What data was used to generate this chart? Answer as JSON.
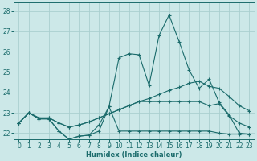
{
  "xlabel": "Humidex (Indice chaleur)",
  "xlim": [
    -0.5,
    23.5
  ],
  "ylim": [
    21.7,
    28.4
  ],
  "yticks": [
    22,
    23,
    24,
    25,
    26,
    27,
    28
  ],
  "xticks": [
    0,
    1,
    2,
    3,
    4,
    5,
    6,
    7,
    8,
    9,
    10,
    11,
    12,
    13,
    14,
    15,
    16,
    17,
    18,
    19,
    20,
    21,
    22,
    23
  ],
  "bg_color": "#cce8e8",
  "grid_color": "#aacfcf",
  "line_color": "#1a6b6b",
  "lines": [
    {
      "x": [
        0,
        1,
        2,
        3,
        4,
        5,
        6,
        7,
        8,
        9,
        10,
        11,
        12,
        13,
        14,
        15,
        16,
        17,
        18,
        19,
        20,
        21,
        22,
        23
      ],
      "y": [
        22.5,
        23.0,
        22.7,
        22.7,
        22.1,
        21.7,
        21.85,
        21.9,
        22.4,
        23.3,
        25.7,
        25.9,
        25.85,
        24.35,
        26.8,
        27.8,
        26.5,
        25.1,
        24.2,
        24.65,
        23.5,
        22.9,
        22.0,
        21.95
      ]
    },
    {
      "x": [
        0,
        1,
        2,
        3,
        4,
        5,
        6,
        7,
        8,
        9,
        10,
        11,
        12,
        13,
        14,
        15,
        16,
        17,
        18,
        19,
        20,
        21,
        22,
        23
      ],
      "y": [
        22.5,
        23.0,
        22.7,
        22.7,
        22.1,
        21.7,
        21.85,
        21.9,
        22.1,
        23.3,
        22.1,
        22.1,
        22.1,
        22.1,
        22.1,
        22.1,
        22.1,
        22.1,
        22.1,
        22.1,
        22.0,
        21.95,
        21.95,
        21.95
      ]
    },
    {
      "x": [
        0,
        1,
        2,
        3,
        4,
        5,
        6,
        7,
        8,
        9,
        10,
        11,
        12,
        13,
        14,
        15,
        16,
        17,
        18,
        19,
        20,
        21,
        22,
        23
      ],
      "y": [
        22.5,
        23.0,
        22.75,
        22.75,
        22.5,
        22.3,
        22.4,
        22.55,
        22.75,
        22.95,
        23.15,
        23.35,
        23.55,
        23.7,
        23.9,
        24.1,
        24.25,
        24.45,
        24.55,
        24.3,
        24.2,
        23.8,
        23.35,
        23.1
      ]
    },
    {
      "x": [
        0,
        1,
        2,
        3,
        4,
        5,
        6,
        7,
        8,
        9,
        10,
        11,
        12,
        13,
        14,
        15,
        16,
        17,
        18,
        19,
        20,
        21,
        22,
        23
      ],
      "y": [
        22.5,
        23.0,
        22.75,
        22.75,
        22.5,
        22.3,
        22.4,
        22.55,
        22.75,
        22.95,
        23.15,
        23.35,
        23.55,
        23.55,
        23.55,
        23.55,
        23.55,
        23.55,
        23.55,
        23.35,
        23.45,
        22.85,
        22.5,
        22.3
      ]
    }
  ]
}
